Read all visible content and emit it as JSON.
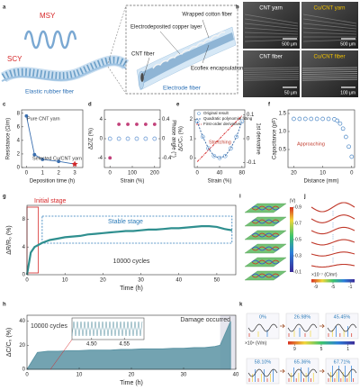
{
  "panel_labels": [
    "a",
    "b",
    "c",
    "d",
    "e",
    "f",
    "g",
    "h",
    "i",
    "j",
    "k"
  ],
  "schematic": {
    "msy": "MSY",
    "scy": "SCY",
    "elastic": "Elastic rubber fiber",
    "electrode": "Electrode fiber",
    "cotton": "Wrapped cotton fiber",
    "copper": "Electrodeposited copper layer",
    "cnt": "CNT fiber",
    "ecoflex": "Ecoflex encapsulation"
  },
  "sem": [
    {
      "name": "CNT yarn",
      "scale": "500 μm"
    },
    {
      "name": "Cu/CNT yarn",
      "scale": "500 μm"
    },
    {
      "name": "CNT fiber",
      "scale": "50 μm"
    },
    {
      "name": "Cu/CNT fiber",
      "scale": "100 μm"
    }
  ],
  "chart_data": [
    {
      "type": "line",
      "x": [
        0,
        0.5,
        1,
        2,
        3
      ],
      "series": [
        {
          "color": "#3a6fb0",
          "style": "line-markers",
          "values": [
            7.6,
            1.9,
            1.2,
            0.9,
            0.5
          ]
        },
        {
          "color": "#d62728",
          "style": "star",
          "values": [
            null,
            null,
            null,
            null,
            0.5
          ]
        }
      ],
      "xlim": [
        -0.3,
        3.5
      ],
      "xticks": [
        0,
        1,
        2,
        3
      ],
      "ylim": [
        0,
        8.5
      ],
      "yticks": [
        0,
        2,
        4,
        6,
        8
      ],
      "xlabel": "Deposition time (h)",
      "ylabel": "Resistance (Ω/m)",
      "annotations": [
        "Pure CNT yarn",
        "Selected Cu/CNT yarn"
      ]
    },
    {
      "type": "scatter",
      "x": [
        0,
        40,
        80,
        120,
        160,
        200
      ],
      "series": [
        {
          "color": "#c2407a",
          "style": "markers",
          "values": [
            -4,
            3,
            3,
            3,
            3,
            3
          ]
        },
        {
          "color": "#5b8fd0",
          "style": "open",
          "axis": "y2",
          "values": [
            0,
            0,
            0,
            0,
            0,
            0
          ]
        }
      ],
      "xlim": [
        -25,
        225
      ],
      "xticks": [
        0,
        100,
        200
      ],
      "ylim": [
        -6,
        6
      ],
      "yticks": [
        -4,
        0,
        4
      ],
      "y2lim": [
        -0.6,
        0.6
      ],
      "y2ticks": [
        -0.4,
        0,
        0.4
      ],
      "xlabel": "Strain (%)",
      "ylabel": "ΔZ/Z (%)",
      "y2label": "Phase angle (°)"
    },
    {
      "type": "scatter",
      "x": [
        0,
        10,
        20,
        30,
        40,
        50,
        60,
        70,
        80
      ],
      "series": [
        {
          "name": "Original result",
          "color": "#6a9fd4",
          "style": "open",
          "values": [
            1.9,
            1.1,
            0.5,
            0.1,
            0,
            0.1,
            0.5,
            1.1,
            1.9
          ]
        },
        {
          "name": "Quadratic polynomial fitting",
          "color": "#2b5f9e",
          "style": "dashed",
          "values": [
            1.9,
            1.1,
            0.5,
            0.1,
            0,
            0.1,
            0.5,
            1.1,
            1.9
          ]
        },
        {
          "name": "First-order derivative",
          "color": "#d62728",
          "style": "dashdot",
          "axis": "y2",
          "values": [
            -0.096,
            -0.072,
            -0.048,
            -0.024,
            0,
            0.024,
            0.048,
            0.072,
            0.096
          ]
        }
      ],
      "xlim": [
        -5,
        85
      ],
      "xticks": [
        0,
        40,
        80
      ],
      "ylim": [
        -0.5,
        2.5
      ],
      "yticks": [
        0,
        1,
        2
      ],
      "y2lim": [
        -0.12,
        0.12
      ],
      "y2ticks": [
        -0.1,
        0,
        0.1
      ],
      "xlabel": "Strain (%)",
      "ylabel": "ΔC/C₀ (%)",
      "y2label": "1st derivative",
      "annotations": [
        "Stretching"
      ]
    },
    {
      "type": "scatter",
      "x": [
        20,
        18,
        16,
        14,
        12,
        10,
        8,
        6,
        5,
        4,
        3,
        2,
        1,
        0
      ],
      "series": [
        {
          "color": "#4a86c5",
          "style": "open",
          "values": [
            1.35,
            1.35,
            1.35,
            1.35,
            1.35,
            1.35,
            1.35,
            1.34,
            1.3,
            1.22,
            1.08,
            0.85,
            0.58,
            0.3
          ]
        }
      ],
      "xlim": [
        22,
        -1
      ],
      "xticks": [
        20,
        10,
        0
      ],
      "ylim": [
        0,
        1.6
      ],
      "yticks": [
        0.5,
        {
          "value": 1,
          "label": "1.0"
        },
        1.5
      ],
      "xlabel": "Distance (mm)",
      "ylabel": "Capacitance (pF)",
      "annotations": [
        "Approaching"
      ]
    },
    {
      "type": "line",
      "x": [
        0,
        1,
        2,
        4,
        6,
        8,
        10,
        12,
        14,
        16,
        18,
        20,
        22,
        24,
        26,
        28,
        30,
        32,
        34,
        36,
        38,
        40,
        42,
        44,
        46,
        48,
        50,
        52,
        54
      ],
      "series": [
        {
          "color": "#2f8f8f",
          "style": "line",
          "values": [
            0,
            3.2,
            4.0,
            4.6,
            5.0,
            5.2,
            5.4,
            5.5,
            5.6,
            5.8,
            5.9,
            6.0,
            6.1,
            6.2,
            6.3,
            6.3,
            6.4,
            6.5,
            6.5,
            6.6,
            6.7,
            6.7,
            6.8,
            6.9,
            7.0,
            7.0,
            6.9,
            6.6,
            6.4
          ]
        }
      ],
      "xlim": [
        0,
        55
      ],
      "xticks": [
        0,
        10,
        20,
        30,
        40,
        50
      ],
      "ylim": [
        0,
        10
      ],
      "yticks": [
        0,
        4,
        8
      ],
      "xlabel": "Time (h)",
      "ylabel": "ΔR/R₀ (%)",
      "annotations": [
        "Initial stage",
        "Stable stage",
        "10000 cycles"
      ]
    },
    {
      "type": "area",
      "x": [
        0,
        2,
        4,
        6,
        8,
        10,
        12,
        14,
        16,
        18,
        20,
        22,
        24,
        26,
        28,
        30,
        32,
        34,
        36,
        37,
        38,
        39
      ],
      "series": [
        {
          "color": "#5a93a3",
          "style": "line",
          "values": [
            0,
            14,
            15,
            15,
            15.5,
            15.5,
            16,
            16,
            16,
            16.5,
            16.5,
            17,
            17,
            17,
            17.5,
            17.5,
            18,
            18,
            19,
            20,
            30,
            40
          ]
        }
      ],
      "xlim": [
        0,
        40
      ],
      "xticks": [
        0,
        10,
        20,
        30,
        40
      ],
      "ylim": [
        0,
        45
      ],
      "yticks": [
        0,
        20,
        40
      ],
      "xlabel": "Time (h)",
      "ylabel": "ΔC/C₀ (%)",
      "annotations": [
        "10000 cycles",
        "Damage occurred"
      ],
      "inset": {
        "xlim": [
          4.47,
          4.58
        ],
        "xticks": [
          {
            "value": 4.5,
            "label": "4.50"
          },
          4.55
        ]
      }
    }
  ],
  "potential": {
    "unit": "(V)",
    "lim": [
      0.1,
      0.9
    ],
    "ticks": [
      0.1,
      0.3,
      0.5,
      0.7,
      0.9
    ]
  },
  "charge": {
    "unit": "×10⁻⁷ (C/m²)",
    "lim": [
      -10,
      0
    ],
    "ticks": [
      -9,
      -5,
      -1
    ]
  },
  "field": {
    "unit": "×10⁴ (V/m)",
    "lim": [
      10,
      0
    ],
    "ticks": [
      9,
      5,
      1
    ],
    "stages": [
      "0%",
      "26.98%",
      "45.45%",
      "58.10%",
      "65.36%",
      "67.71%"
    ]
  }
}
